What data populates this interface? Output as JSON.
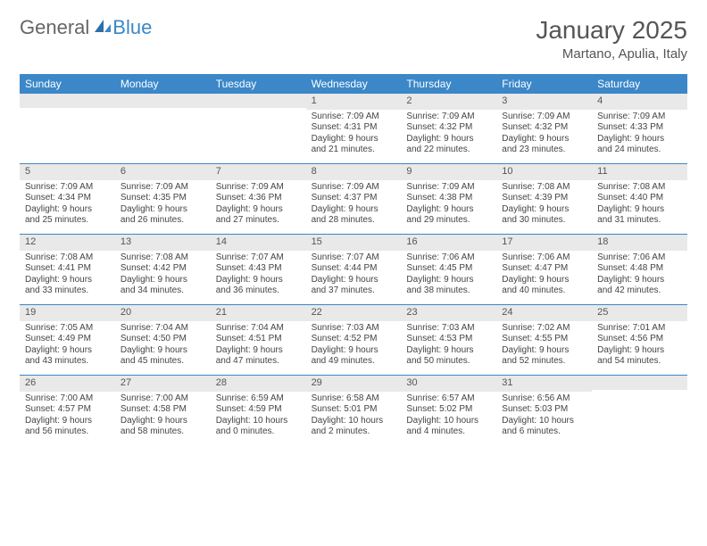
{
  "brand": {
    "part1": "General",
    "part2": "Blue"
  },
  "title": {
    "month": "January 2025",
    "location": "Martano, Apulia, Italy"
  },
  "colors": {
    "header_bg": "#3b87c8",
    "header_text": "#ffffff",
    "daynum_bg": "#e9e9e9",
    "text": "#444444",
    "rule": "#3b87c8"
  },
  "dayNames": [
    "Sunday",
    "Monday",
    "Tuesday",
    "Wednesday",
    "Thursday",
    "Friday",
    "Saturday"
  ],
  "weeks": [
    [
      {
        "n": "",
        "sr": "",
        "ss": "",
        "d1": "",
        "d2": ""
      },
      {
        "n": "",
        "sr": "",
        "ss": "",
        "d1": "",
        "d2": ""
      },
      {
        "n": "",
        "sr": "",
        "ss": "",
        "d1": "",
        "d2": ""
      },
      {
        "n": "1",
        "sr": "Sunrise: 7:09 AM",
        "ss": "Sunset: 4:31 PM",
        "d1": "Daylight: 9 hours",
        "d2": "and 21 minutes."
      },
      {
        "n": "2",
        "sr": "Sunrise: 7:09 AM",
        "ss": "Sunset: 4:32 PM",
        "d1": "Daylight: 9 hours",
        "d2": "and 22 minutes."
      },
      {
        "n": "3",
        "sr": "Sunrise: 7:09 AM",
        "ss": "Sunset: 4:32 PM",
        "d1": "Daylight: 9 hours",
        "d2": "and 23 minutes."
      },
      {
        "n": "4",
        "sr": "Sunrise: 7:09 AM",
        "ss": "Sunset: 4:33 PM",
        "d1": "Daylight: 9 hours",
        "d2": "and 24 minutes."
      }
    ],
    [
      {
        "n": "5",
        "sr": "Sunrise: 7:09 AM",
        "ss": "Sunset: 4:34 PM",
        "d1": "Daylight: 9 hours",
        "d2": "and 25 minutes."
      },
      {
        "n": "6",
        "sr": "Sunrise: 7:09 AM",
        "ss": "Sunset: 4:35 PM",
        "d1": "Daylight: 9 hours",
        "d2": "and 26 minutes."
      },
      {
        "n": "7",
        "sr": "Sunrise: 7:09 AM",
        "ss": "Sunset: 4:36 PM",
        "d1": "Daylight: 9 hours",
        "d2": "and 27 minutes."
      },
      {
        "n": "8",
        "sr": "Sunrise: 7:09 AM",
        "ss": "Sunset: 4:37 PM",
        "d1": "Daylight: 9 hours",
        "d2": "and 28 minutes."
      },
      {
        "n": "9",
        "sr": "Sunrise: 7:09 AM",
        "ss": "Sunset: 4:38 PM",
        "d1": "Daylight: 9 hours",
        "d2": "and 29 minutes."
      },
      {
        "n": "10",
        "sr": "Sunrise: 7:08 AM",
        "ss": "Sunset: 4:39 PM",
        "d1": "Daylight: 9 hours",
        "d2": "and 30 minutes."
      },
      {
        "n": "11",
        "sr": "Sunrise: 7:08 AM",
        "ss": "Sunset: 4:40 PM",
        "d1": "Daylight: 9 hours",
        "d2": "and 31 minutes."
      }
    ],
    [
      {
        "n": "12",
        "sr": "Sunrise: 7:08 AM",
        "ss": "Sunset: 4:41 PM",
        "d1": "Daylight: 9 hours",
        "d2": "and 33 minutes."
      },
      {
        "n": "13",
        "sr": "Sunrise: 7:08 AM",
        "ss": "Sunset: 4:42 PM",
        "d1": "Daylight: 9 hours",
        "d2": "and 34 minutes."
      },
      {
        "n": "14",
        "sr": "Sunrise: 7:07 AM",
        "ss": "Sunset: 4:43 PM",
        "d1": "Daylight: 9 hours",
        "d2": "and 36 minutes."
      },
      {
        "n": "15",
        "sr": "Sunrise: 7:07 AM",
        "ss": "Sunset: 4:44 PM",
        "d1": "Daylight: 9 hours",
        "d2": "and 37 minutes."
      },
      {
        "n": "16",
        "sr": "Sunrise: 7:06 AM",
        "ss": "Sunset: 4:45 PM",
        "d1": "Daylight: 9 hours",
        "d2": "and 38 minutes."
      },
      {
        "n": "17",
        "sr": "Sunrise: 7:06 AM",
        "ss": "Sunset: 4:47 PM",
        "d1": "Daylight: 9 hours",
        "d2": "and 40 minutes."
      },
      {
        "n": "18",
        "sr": "Sunrise: 7:06 AM",
        "ss": "Sunset: 4:48 PM",
        "d1": "Daylight: 9 hours",
        "d2": "and 42 minutes."
      }
    ],
    [
      {
        "n": "19",
        "sr": "Sunrise: 7:05 AM",
        "ss": "Sunset: 4:49 PM",
        "d1": "Daylight: 9 hours",
        "d2": "and 43 minutes."
      },
      {
        "n": "20",
        "sr": "Sunrise: 7:04 AM",
        "ss": "Sunset: 4:50 PM",
        "d1": "Daylight: 9 hours",
        "d2": "and 45 minutes."
      },
      {
        "n": "21",
        "sr": "Sunrise: 7:04 AM",
        "ss": "Sunset: 4:51 PM",
        "d1": "Daylight: 9 hours",
        "d2": "and 47 minutes."
      },
      {
        "n": "22",
        "sr": "Sunrise: 7:03 AM",
        "ss": "Sunset: 4:52 PM",
        "d1": "Daylight: 9 hours",
        "d2": "and 49 minutes."
      },
      {
        "n": "23",
        "sr": "Sunrise: 7:03 AM",
        "ss": "Sunset: 4:53 PM",
        "d1": "Daylight: 9 hours",
        "d2": "and 50 minutes."
      },
      {
        "n": "24",
        "sr": "Sunrise: 7:02 AM",
        "ss": "Sunset: 4:55 PM",
        "d1": "Daylight: 9 hours",
        "d2": "and 52 minutes."
      },
      {
        "n": "25",
        "sr": "Sunrise: 7:01 AM",
        "ss": "Sunset: 4:56 PM",
        "d1": "Daylight: 9 hours",
        "d2": "and 54 minutes."
      }
    ],
    [
      {
        "n": "26",
        "sr": "Sunrise: 7:00 AM",
        "ss": "Sunset: 4:57 PM",
        "d1": "Daylight: 9 hours",
        "d2": "and 56 minutes."
      },
      {
        "n": "27",
        "sr": "Sunrise: 7:00 AM",
        "ss": "Sunset: 4:58 PM",
        "d1": "Daylight: 9 hours",
        "d2": "and 58 minutes."
      },
      {
        "n": "28",
        "sr": "Sunrise: 6:59 AM",
        "ss": "Sunset: 4:59 PM",
        "d1": "Daylight: 10 hours",
        "d2": "and 0 minutes."
      },
      {
        "n": "29",
        "sr": "Sunrise: 6:58 AM",
        "ss": "Sunset: 5:01 PM",
        "d1": "Daylight: 10 hours",
        "d2": "and 2 minutes."
      },
      {
        "n": "30",
        "sr": "Sunrise: 6:57 AM",
        "ss": "Sunset: 5:02 PM",
        "d1": "Daylight: 10 hours",
        "d2": "and 4 minutes."
      },
      {
        "n": "31",
        "sr": "Sunrise: 6:56 AM",
        "ss": "Sunset: 5:03 PM",
        "d1": "Daylight: 10 hours",
        "d2": "and 6 minutes."
      },
      {
        "n": "",
        "sr": "",
        "ss": "",
        "d1": "",
        "d2": ""
      }
    ]
  ]
}
